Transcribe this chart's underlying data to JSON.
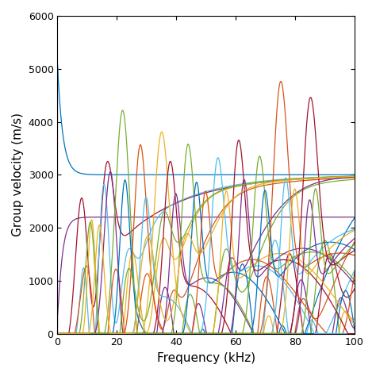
{
  "xlabel": "Frequency (kHz)",
  "ylabel": "Group velocity (m/s)",
  "xlim": [
    0,
    100
  ],
  "ylim": [
    0,
    6000
  ],
  "xticks": [
    0,
    20,
    40,
    60,
    80,
    100
  ],
  "yticks": [
    0,
    1000,
    2000,
    3000,
    4000,
    5000,
    6000
  ],
  "figsize": [
    4.74,
    4.74
  ],
  "dpi": 100,
  "matlab_colors": [
    "#0072BD",
    "#D95319",
    "#EDB120",
    "#7E2F8E",
    "#77AC30",
    "#4DBEEE",
    "#A2142F",
    "#0072BD",
    "#D95319",
    "#EDB120",
    "#7E2F8E",
    "#77AC30",
    "#4DBEEE",
    "#A2142F"
  ],
  "v_ref": 3000,
  "n_modes": 30
}
